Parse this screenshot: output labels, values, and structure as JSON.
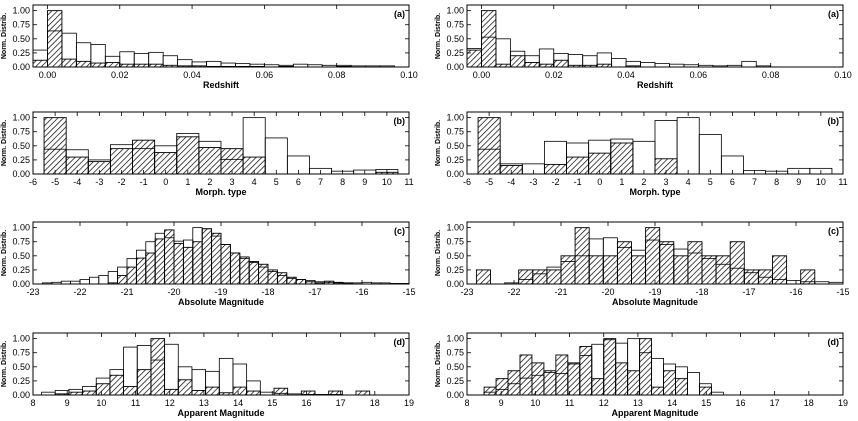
{
  "chart_data": [
    {
      "type": "bar",
      "col": 0,
      "row": 0,
      "panel_label": "(a)",
      "xlabel": "Redshift",
      "ylabel": "Norm. Distrib.",
      "xlim": [
        -0.004,
        0.1
      ],
      "ylim": [
        0,
        1.1
      ],
      "xticks": [
        0.0,
        0.02,
        0.04,
        0.06,
        0.08,
        0.1
      ],
      "xtick_labels": [
        "0.00",
        "0.02",
        "0.04",
        "0.06",
        "0.08",
        "0.10"
      ],
      "yticks": [
        0,
        0.25,
        0.5,
        0.75,
        1.0
      ],
      "ytick_labels": [
        "0.00",
        "0.25",
        "0.50",
        "0.75",
        "1.00"
      ],
      "bins_start": -0.004,
      "bin_width": 0.004,
      "series": [
        {
          "style": "hatched",
          "values": [
            0.12,
            1.0,
            0.14,
            0.1,
            0.07,
            0.08,
            0.05,
            0.05,
            0.05,
            0.03,
            0.02,
            0.02,
            0.01,
            0.01,
            0.01,
            0.01,
            0.0,
            0.01,
            0.0,
            0.0,
            0.0,
            0.01,
            0.0,
            0.0,
            0.0,
            0.0
          ]
        },
        {
          "style": "open",
          "values": [
            0.3,
            0.64,
            0.6,
            0.43,
            0.4,
            0.19,
            0.27,
            0.24,
            0.26,
            0.2,
            0.13,
            0.09,
            0.1,
            0.07,
            0.06,
            0.05,
            0.04,
            0.03,
            0.05,
            0.04,
            0.03,
            0.03,
            0.02,
            0.02,
            0.02,
            0.0
          ]
        }
      ]
    },
    {
      "type": "bar",
      "col": 0,
      "row": 1,
      "panel_label": "(b)",
      "xlabel": "Morph. type",
      "ylabel": "Norm. Distrib.",
      "xlim": [
        -6,
        11
      ],
      "ylim": [
        0,
        1.1
      ],
      "xticks": [
        -6,
        -5,
        -4,
        -3,
        -2,
        -1,
        0,
        1,
        2,
        3,
        4,
        5,
        6,
        7,
        8,
        9,
        10,
        11
      ],
      "xtick_labels": [
        "-6",
        "-5",
        "-4",
        "-3",
        "-2",
        "-1",
        "0",
        "1",
        "2",
        "3",
        "4",
        "5",
        "6",
        "7",
        "8",
        "9",
        "10",
        "11"
      ],
      "yticks": [
        0,
        0.25,
        0.5,
        0.75,
        1.0
      ],
      "ytick_labels": [
        "0.00",
        "0.25",
        "0.50",
        "0.75",
        "1.00"
      ],
      "bins_start": -5.5,
      "bin_width": 1,
      "series": [
        {
          "style": "hatched",
          "values": [
            1.0,
            0.3,
            0.22,
            0.45,
            0.6,
            0.38,
            0.66,
            0.47,
            0.45,
            0.3,
            0.0,
            0.0,
            0.0,
            0.0,
            0.0,
            0.03
          ]
        },
        {
          "style": "open",
          "values": [
            0.44,
            0.43,
            0.25,
            0.52,
            0.45,
            0.5,
            0.72,
            0.58,
            0.26,
            1.0,
            0.64,
            0.32,
            0.1,
            0.05,
            0.07,
            0.08
          ]
        }
      ]
    },
    {
      "type": "bar",
      "col": 0,
      "row": 2,
      "panel_label": "(c)",
      "xlabel": "Absolute Magnitude",
      "ylabel": "Norm. Distrib.",
      "xlim": [
        -23,
        -15
      ],
      "ylim": [
        0,
        1.1
      ],
      "xticks": [
        -23,
        -22,
        -21,
        -20,
        -19,
        -18,
        -17,
        -16,
        -15
      ],
      "xtick_labels": [
        "-23",
        "-22",
        "-21",
        "-20",
        "-19",
        "-18",
        "-17",
        "-16",
        "-15"
      ],
      "yticks": [
        0,
        0.25,
        0.5,
        0.75,
        1.0
      ],
      "ytick_labels": [
        "0.00",
        "0.25",
        "0.50",
        "0.75",
        "1.00"
      ],
      "bins_start": -22.8,
      "bin_width": 0.2,
      "series": [
        {
          "style": "hatched",
          "values": [
            0,
            0,
            0,
            0,
            0,
            0,
            0,
            0.02,
            0.15,
            0.3,
            0.46,
            0.55,
            0.8,
            0.96,
            0.72,
            0.65,
            0.75,
            0.98,
            0.9,
            0.7,
            0.55,
            0.48,
            0.4,
            0.35,
            0.25,
            0.2,
            0.12,
            0.08,
            0.04,
            0.02,
            0.05,
            0.02,
            0.02,
            0,
            0,
            0,
            0,
            0,
            0
          ]
        },
        {
          "style": "open",
          "values": [
            0.02,
            0.03,
            0.05,
            0.05,
            0.08,
            0.12,
            0.15,
            0.22,
            0.3,
            0.45,
            0.6,
            0.75,
            0.9,
            0.82,
            0.76,
            0.78,
            1.0,
            0.98,
            0.85,
            0.7,
            0.55,
            0.45,
            0.38,
            0.3,
            0.22,
            0.15,
            0.1,
            0.08,
            0.06,
            0.04,
            0.03,
            0.03,
            0.02,
            0.02,
            0.03,
            0.02,
            0.02,
            0.01,
            0.01
          ]
        }
      ]
    },
    {
      "type": "bar",
      "col": 0,
      "row": 3,
      "panel_label": "(d)",
      "xlabel": "Apparent Magnitude",
      "ylabel": "Norm. Distrib.",
      "xlim": [
        8,
        19
      ],
      "ylim": [
        0,
        1.1
      ],
      "xticks": [
        8,
        9,
        10,
        11,
        12,
        13,
        14,
        15,
        16,
        17,
        18,
        19
      ],
      "xtick_labels": [
        "8",
        "9",
        "10",
        "11",
        "12",
        "13",
        "14",
        "15",
        "16",
        "17",
        "18",
        "19"
      ],
      "yticks": [
        0,
        0.25,
        0.5,
        0.75,
        1.0
      ],
      "ytick_labels": [
        "0.00",
        "0.25",
        "0.50",
        "0.75",
        "1.00"
      ],
      "bins_start": 8.25,
      "bin_width": 0.4,
      "series": [
        {
          "style": "hatched",
          "values": [
            0.0,
            0.02,
            0.05,
            0.07,
            0.2,
            0.35,
            0.15,
            0.45,
            1.0,
            0.1,
            0.27,
            0.08,
            0.14,
            0.04,
            0.14,
            0.07,
            0.0,
            0.12,
            0.0,
            0.07,
            0.0,
            0.07,
            0.0,
            0.07,
            0.0,
            0.0
          ]
        },
        {
          "style": "open",
          "values": [
            0.05,
            0.08,
            0.1,
            0.15,
            0.3,
            0.45,
            0.85,
            0.88,
            0.62,
            0.9,
            0.5,
            0.45,
            0.42,
            0.65,
            0.55,
            0.25,
            0.05,
            0.03,
            0.02,
            0.01,
            0.01,
            0.01,
            0.0,
            0.0,
            0.0,
            0.0
          ]
        }
      ]
    },
    {
      "type": "bar",
      "col": 1,
      "row": 0,
      "panel_label": "(a)",
      "xlabel": "Redshift",
      "ylabel": "Norm. Distrib.",
      "xlim": [
        -0.004,
        0.1
      ],
      "ylim": [
        0,
        1.1
      ],
      "xticks": [
        0.0,
        0.02,
        0.04,
        0.06,
        0.08,
        0.1
      ],
      "xtick_labels": [
        "0.00",
        "0.02",
        "0.04",
        "0.06",
        "0.08",
        "0.10"
      ],
      "yticks": [
        0,
        0.25,
        0.5,
        0.75,
        1.0
      ],
      "ytick_labels": [
        "0.00",
        "0.25",
        "0.50",
        "0.75",
        "1.00"
      ],
      "bins_start": -0.004,
      "bin_width": 0.004,
      "series": [
        {
          "style": "hatched",
          "values": [
            0.3,
            1.0,
            0.05,
            0.2,
            0.08,
            0.05,
            0.12,
            0.03,
            0.03,
            0.05,
            0.0,
            0.02,
            0.0,
            0.0,
            0.0,
            0.0,
            0.0,
            0.0,
            0.0,
            0.0,
            0.0,
            0.0,
            0.0,
            0.0,
            0.0,
            0.0
          ]
        },
        {
          "style": "open",
          "values": [
            0.33,
            0.53,
            0.5,
            0.28,
            0.2,
            0.32,
            0.24,
            0.22,
            0.2,
            0.25,
            0.15,
            0.1,
            0.08,
            0.06,
            0.05,
            0.04,
            0.03,
            0.02,
            0.03,
            0.1,
            0.02,
            0.0,
            0.0,
            0.0,
            0.0,
            0.0
          ]
        }
      ]
    },
    {
      "type": "bar",
      "col": 1,
      "row": 1,
      "panel_label": "(b)",
      "xlabel": "Morph. type",
      "ylabel": "Norm. Distrib.",
      "xlim": [
        -6,
        11
      ],
      "ylim": [
        0,
        1.1
      ],
      "xticks": [
        -6,
        -5,
        -4,
        -3,
        -2,
        -1,
        0,
        1,
        2,
        3,
        4,
        5,
        6,
        7,
        8,
        9,
        10,
        11
      ],
      "xtick_labels": [
        "-6",
        "-5",
        "-4",
        "-3",
        "-2",
        "-1",
        "0",
        "1",
        "2",
        "3",
        "4",
        "5",
        "6",
        "7",
        "8",
        "9",
        "10",
        "11"
      ],
      "yticks": [
        0,
        0.25,
        0.5,
        0.75,
        1.0
      ],
      "ytick_labels": [
        "0.00",
        "0.25",
        "0.50",
        "0.75",
        "1.00"
      ],
      "bins_start": -5.5,
      "bin_width": 1,
      "series": [
        {
          "style": "hatched",
          "values": [
            1.0,
            0.15,
            0.0,
            0.17,
            0.3,
            0.37,
            0.55,
            0.0,
            0.27,
            0.0,
            0.0,
            0.0,
            0.0,
            0.0,
            0.0,
            0.0
          ]
        },
        {
          "style": "open",
          "values": [
            0.44,
            0.18,
            0.18,
            0.58,
            0.55,
            0.6,
            0.62,
            0.58,
            0.95,
            1.0,
            0.7,
            0.32,
            0.06,
            0.05,
            0.1,
            0.1
          ]
        }
      ]
    },
    {
      "type": "bar",
      "col": 1,
      "row": 2,
      "panel_label": "(c)",
      "xlabel": "Absolute Magnitude",
      "ylabel": "Norm. Distrib.",
      "xlim": [
        -23,
        -15
      ],
      "ylim": [
        0,
        1.1
      ],
      "xticks": [
        -23,
        -22,
        -21,
        -20,
        -19,
        -18,
        -17,
        -16,
        -15
      ],
      "xtick_labels": [
        "-23",
        "-22",
        "-21",
        "-20",
        "-19",
        "-18",
        "-17",
        "-16",
        "-15"
      ],
      "yticks": [
        0,
        0.25,
        0.5,
        0.75,
        1.0
      ],
      "ytick_labels": [
        "0.00",
        "0.25",
        "0.50",
        "0.75",
        "1.00"
      ],
      "bins_start": -22.8,
      "bin_width": 0.3,
      "series": [
        {
          "style": "hatched",
          "values": [
            0.25,
            0.0,
            0.0,
            0.25,
            0.25,
            0.25,
            0.5,
            1.0,
            0.5,
            0.5,
            0.75,
            0.5,
            1.0,
            0.75,
            0.5,
            0.75,
            0.5,
            0.5,
            0.75,
            0.25,
            0.25,
            0.5,
            0.0,
            0.25,
            0.0,
            0.0,
            0.0
          ]
        },
        {
          "style": "open",
          "values": [
            0.0,
            0.0,
            0.02,
            0.08,
            0.18,
            0.3,
            0.4,
            0.5,
            0.8,
            0.82,
            0.65,
            0.6,
            0.78,
            0.7,
            0.62,
            0.55,
            0.45,
            0.35,
            0.28,
            0.2,
            0.12,
            0.08,
            0.06,
            0.04,
            0.04,
            0.03,
            0.02
          ]
        }
      ]
    },
    {
      "type": "bar",
      "col": 1,
      "row": 3,
      "panel_label": "(d)",
      "xlabel": "Apparent Magnitude",
      "ylabel": "Norm. Distrib.",
      "xlim": [
        8,
        19
      ],
      "ylim": [
        0,
        1.1
      ],
      "xticks": [
        8,
        9,
        10,
        11,
        12,
        13,
        14,
        15,
        16,
        17,
        18,
        19
      ],
      "xtick_labels": [
        "8",
        "9",
        "10",
        "11",
        "12",
        "13",
        "14",
        "15",
        "16",
        "17",
        "18",
        "19"
      ],
      "yticks": [
        0,
        0.25,
        0.5,
        0.75,
        1.0
      ],
      "ytick_labels": [
        "0.00",
        "0.25",
        "0.50",
        "0.75",
        "1.00"
      ],
      "bins_start": 8.5,
      "bin_width": 0.35,
      "series": [
        {
          "style": "hatched",
          "values": [
            0.14,
            0.29,
            0.43,
            0.71,
            0.57,
            0.43,
            0.71,
            0.57,
            0.86,
            0.29,
            1.0,
            0.57,
            0.43,
            1.0,
            0.14,
            0.43,
            0.29,
            0.0,
            0.14,
            0.0,
            0.0,
            0.0
          ]
        },
        {
          "style": "open",
          "values": [
            0.05,
            0.1,
            0.2,
            0.3,
            0.35,
            0.4,
            0.38,
            0.55,
            0.7,
            0.9,
            0.98,
            0.92,
            1.0,
            0.75,
            0.65,
            0.55,
            0.5,
            0.4,
            0.2,
            0.05,
            0.0,
            0.0
          ]
        }
      ]
    }
  ]
}
